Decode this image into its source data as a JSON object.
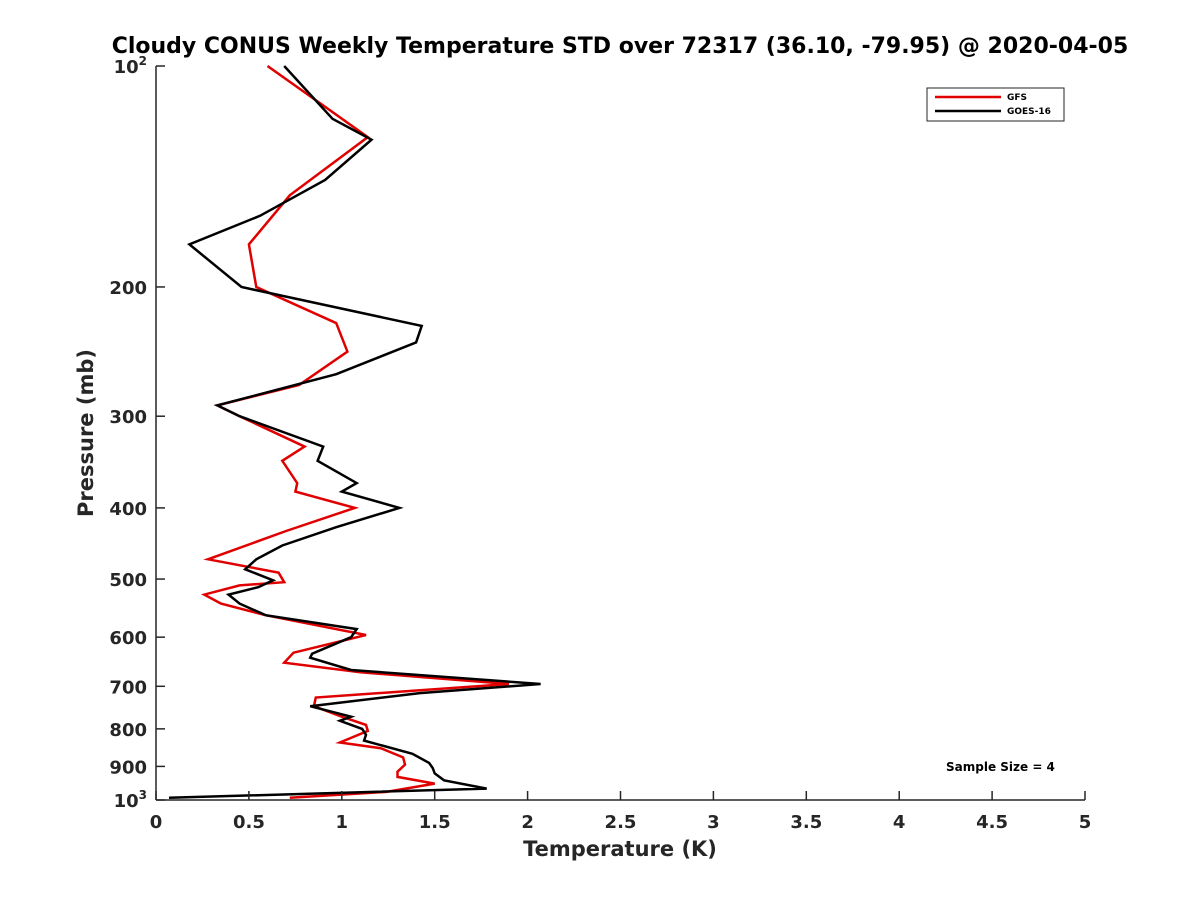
{
  "chart_data": {
    "type": "line",
    "title": "Cloudy CONUS Weekly Temperature STD over 72317 (36.10, -79.95) @ 2020-04-05",
    "xlabel": "Temperature (K)",
    "ylabel": "Pressure (mb)",
    "xlim": [
      0,
      5
    ],
    "ylim": [
      100,
      1000
    ],
    "y_scale": "log",
    "y_reversed": true,
    "grid": false,
    "legend_position": "top-right",
    "x_ticks": [
      {
        "value": 0,
        "label": "0"
      },
      {
        "value": 0.5,
        "label": "0.5"
      },
      {
        "value": 1,
        "label": "1"
      },
      {
        "value": 1.5,
        "label": "1.5"
      },
      {
        "value": 2,
        "label": "2"
      },
      {
        "value": 2.5,
        "label": "2.5"
      },
      {
        "value": 3,
        "label": "3"
      },
      {
        "value": 3.5,
        "label": "3.5"
      },
      {
        "value": 4,
        "label": "4"
      },
      {
        "value": 4.5,
        "label": "4.5"
      },
      {
        "value": 5,
        "label": "5"
      }
    ],
    "y_ticks": [
      {
        "value": 100,
        "label": "10",
        "exp": "2"
      },
      {
        "value": 200,
        "label": "200",
        "exp": ""
      },
      {
        "value": 300,
        "label": "300",
        "exp": ""
      },
      {
        "value": 400,
        "label": "400",
        "exp": ""
      },
      {
        "value": 500,
        "label": "500",
        "exp": ""
      },
      {
        "value": 600,
        "label": "600",
        "exp": ""
      },
      {
        "value": 700,
        "label": "700",
        "exp": ""
      },
      {
        "value": 800,
        "label": "800",
        "exp": ""
      },
      {
        "value": 900,
        "label": "900",
        "exp": ""
      },
      {
        "value": 1000,
        "label": "10",
        "exp": "3"
      }
    ],
    "series": [
      {
        "name": "GFS",
        "color": "#e00000",
        "points": [
          [
            0.6,
            100
          ],
          [
            1.14,
            125
          ],
          [
            0.72,
            150
          ],
          [
            0.5,
            175
          ],
          [
            0.54,
            200
          ],
          [
            0.97,
            224
          ],
          [
            1.03,
            245
          ],
          [
            0.77,
            272
          ],
          [
            0.33,
            290
          ],
          [
            0.45,
            300
          ],
          [
            0.8,
            330
          ],
          [
            0.68,
            345
          ],
          [
            0.76,
            370
          ],
          [
            0.75,
            380
          ],
          [
            1.07,
            400
          ],
          [
            0.7,
            430
          ],
          [
            0.28,
            470
          ],
          [
            0.66,
            490
          ],
          [
            0.69,
            505
          ],
          [
            0.45,
            510
          ],
          [
            0.26,
            525
          ],
          [
            0.35,
            540
          ],
          [
            0.59,
            560
          ],
          [
            1.13,
            596
          ],
          [
            0.74,
            630
          ],
          [
            0.69,
            650
          ],
          [
            1.1,
            670
          ],
          [
            1.9,
            695
          ],
          [
            0.86,
            725
          ],
          [
            0.85,
            745
          ],
          [
            1.0,
            770
          ],
          [
            1.13,
            790
          ],
          [
            1.14,
            805
          ],
          [
            0.99,
            835
          ],
          [
            1.21,
            850
          ],
          [
            1.33,
            875
          ],
          [
            1.34,
            895
          ],
          [
            1.3,
            915
          ],
          [
            1.3,
            930
          ],
          [
            1.5,
            950
          ],
          [
            1.24,
            975
          ],
          [
            0.72,
            993
          ]
        ]
      },
      {
        "name": "GOES-16",
        "color": "#000000",
        "points": [
          [
            0.69,
            100
          ],
          [
            0.95,
            118
          ],
          [
            1.16,
            126
          ],
          [
            0.91,
            143
          ],
          [
            0.56,
            160
          ],
          [
            0.18,
            175
          ],
          [
            0.46,
            200
          ],
          [
            1.43,
            226
          ],
          [
            1.4,
            238
          ],
          [
            0.97,
            263
          ],
          [
            0.33,
            290
          ],
          [
            0.45,
            300
          ],
          [
            0.9,
            330
          ],
          [
            0.87,
            345
          ],
          [
            1.08,
            370
          ],
          [
            1.0,
            380
          ],
          [
            1.31,
            400
          ],
          [
            0.97,
            425
          ],
          [
            0.68,
            450
          ],
          [
            0.54,
            470
          ],
          [
            0.48,
            485
          ],
          [
            0.63,
            502
          ],
          [
            0.55,
            513
          ],
          [
            0.39,
            525
          ],
          [
            0.45,
            540
          ],
          [
            0.59,
            560
          ],
          [
            1.08,
            585
          ],
          [
            1.05,
            600
          ],
          [
            0.84,
            632
          ],
          [
            0.83,
            640
          ],
          [
            1.05,
            665
          ],
          [
            2.07,
            695
          ],
          [
            1.42,
            715
          ],
          [
            0.83,
            745
          ],
          [
            1.05,
            770
          ],
          [
            0.99,
            780
          ],
          [
            1.11,
            800
          ],
          [
            1.13,
            815
          ],
          [
            1.12,
            830
          ],
          [
            1.38,
            865
          ],
          [
            1.47,
            890
          ],
          [
            1.49,
            905
          ],
          [
            1.5,
            920
          ],
          [
            1.55,
            940
          ],
          [
            1.78,
            965
          ],
          [
            0.07,
            993
          ]
        ]
      }
    ],
    "annotations": [
      "Sample Size = 4"
    ]
  }
}
